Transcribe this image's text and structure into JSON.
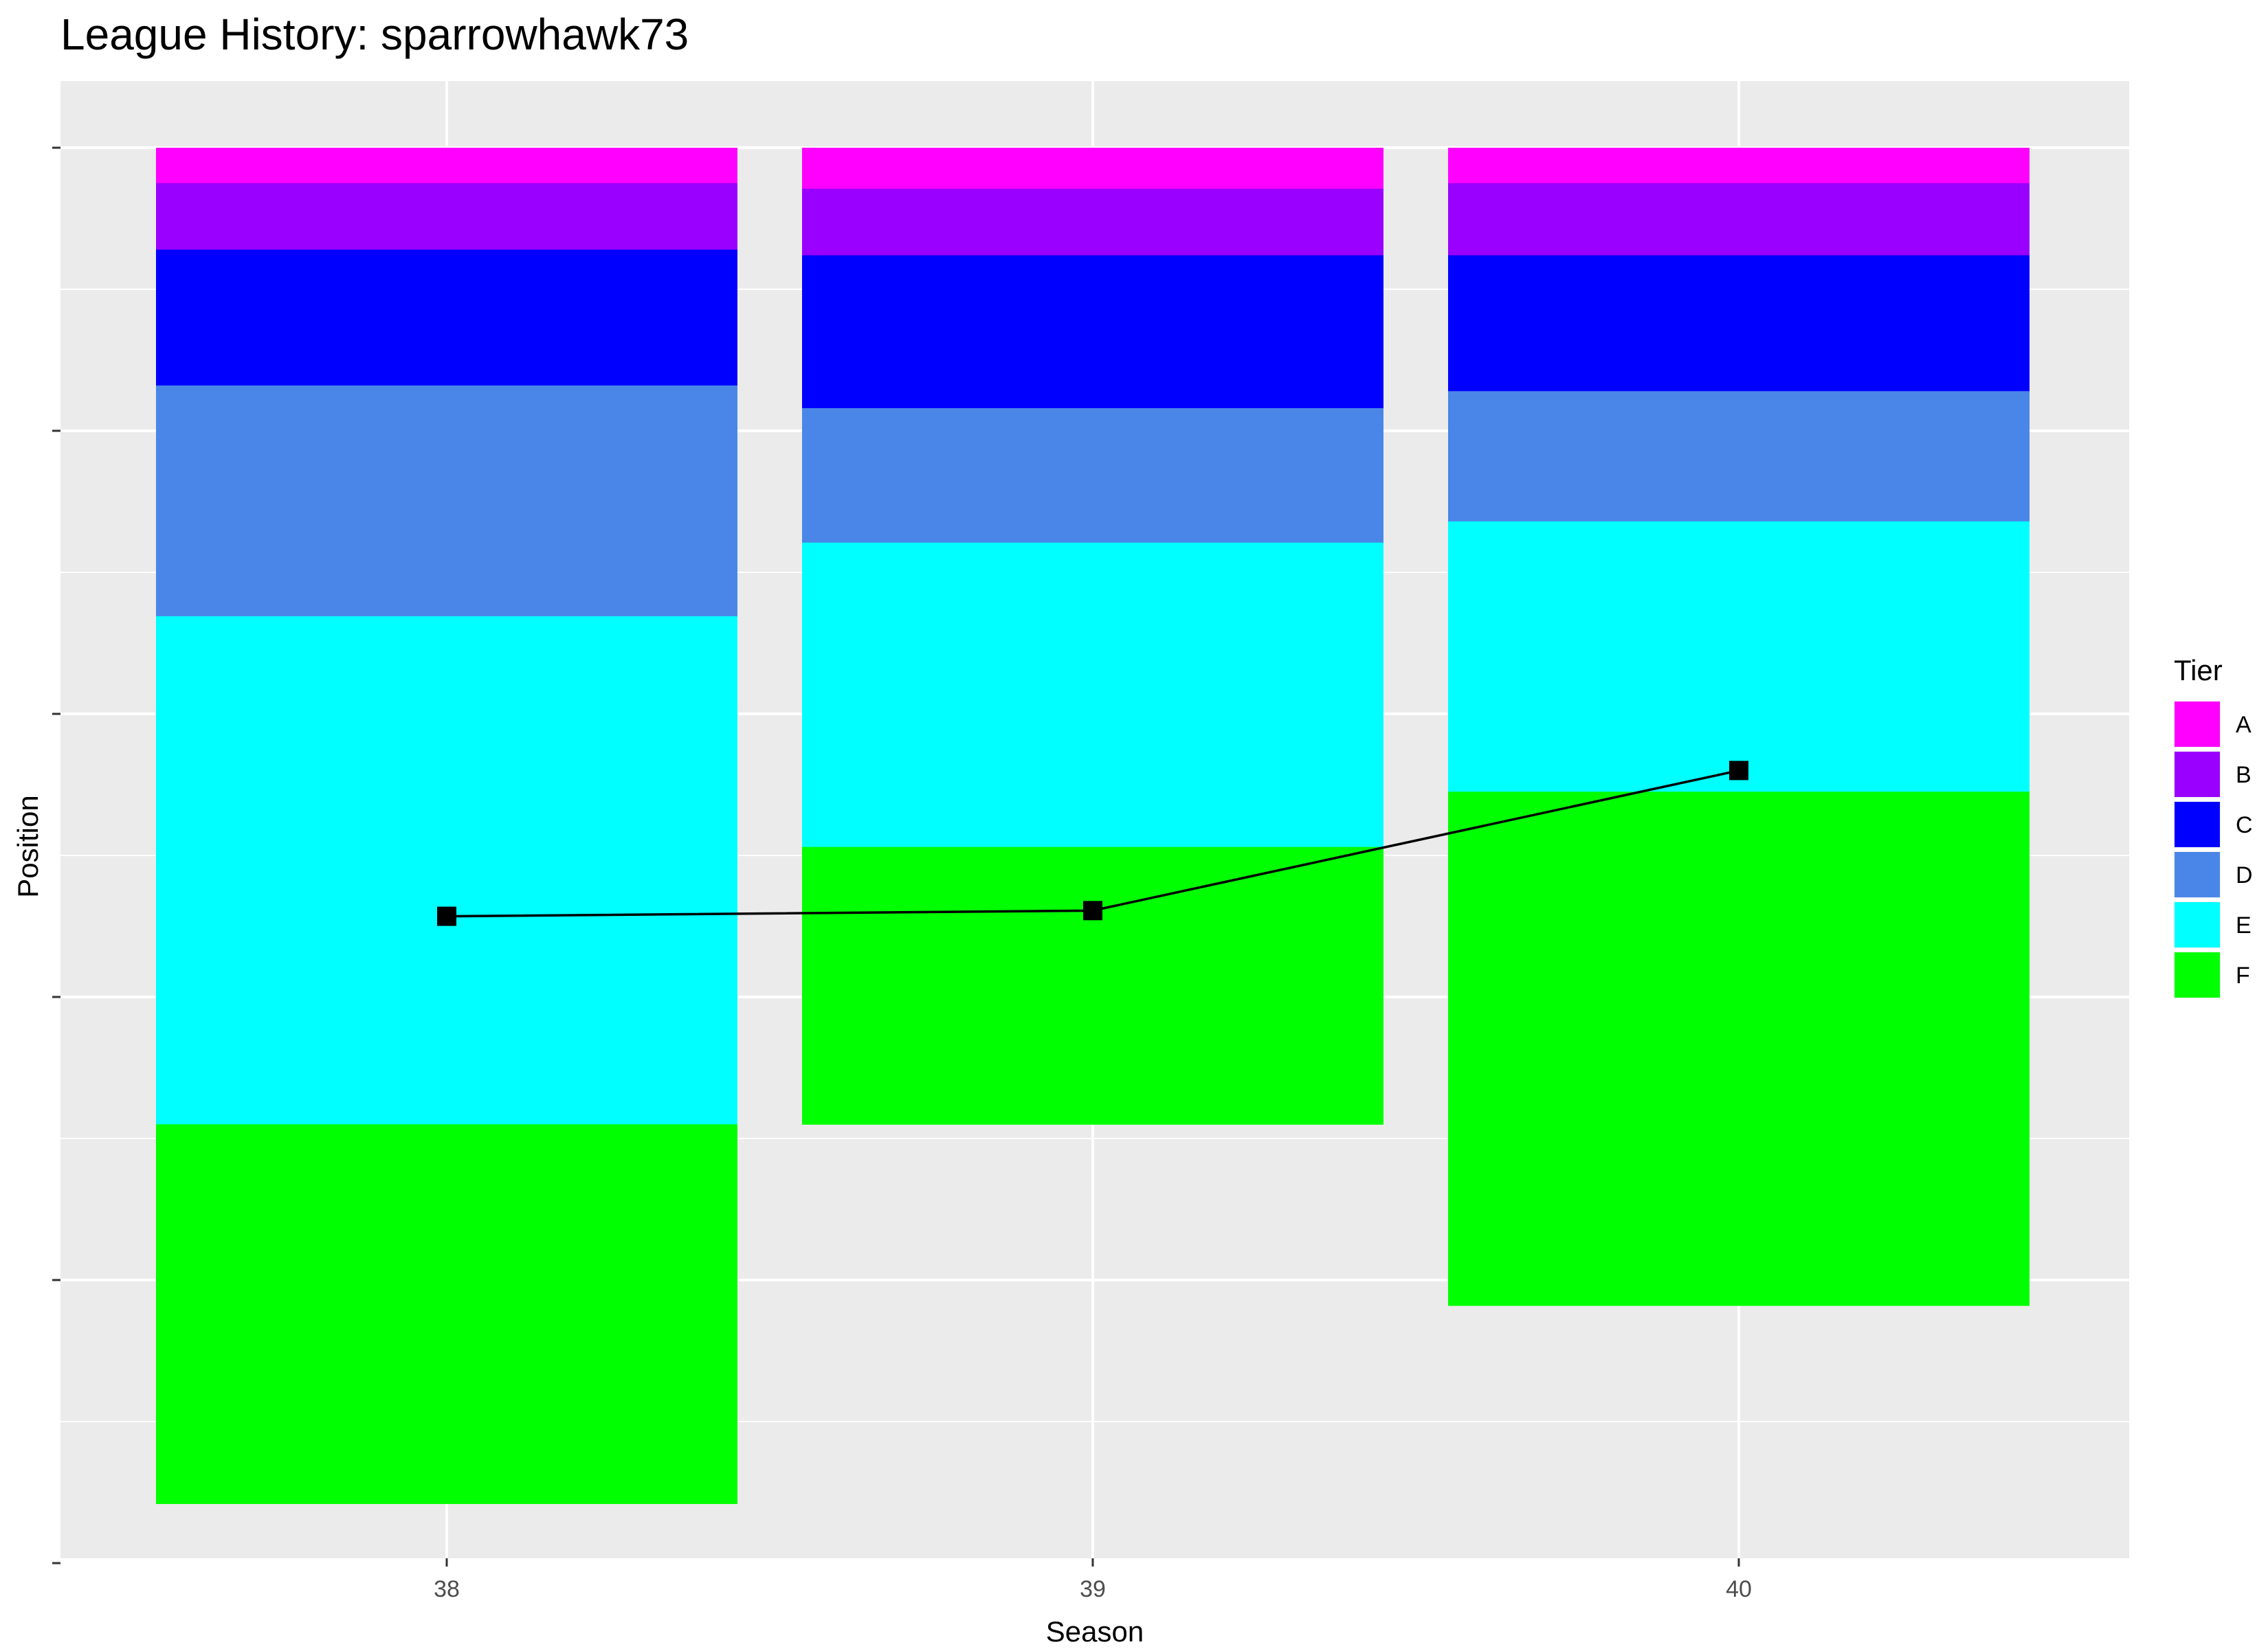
{
  "chart_data": {
    "type": "bar",
    "title": "League History: sparrowhawk73",
    "xlabel": "Season",
    "ylabel": "Position",
    "categories": [
      "38",
      "39",
      "40"
    ],
    "ylim": [
      0,
      1
    ],
    "grid": true,
    "stacked": true,
    "legend": {
      "title": "Tier",
      "position": "right",
      "items": [
        {
          "label": "A",
          "color": "#ff00ff"
        },
        {
          "label": "B",
          "color": "#9900ff"
        },
        {
          "label": "C",
          "color": "#0000ff"
        },
        {
          "label": "D",
          "color": "#4a86e8"
        },
        {
          "label": "E",
          "color": "#00ffff"
        },
        {
          "label": "F",
          "color": "#00ff00"
        }
      ]
    },
    "series": [
      {
        "name": "A",
        "values": [
          0.025,
          0.029,
          0.025
        ]
      },
      {
        "name": "B",
        "values": [
          0.047,
          0.047,
          0.051
        ]
      },
      {
        "name": "C",
        "values": [
          0.096,
          0.108,
          0.096
        ]
      },
      {
        "name": "D",
        "values": [
          0.163,
          0.095,
          0.092
        ]
      },
      {
        "name": "E",
        "values": [
          0.359,
          0.215,
          0.191
        ]
      },
      {
        "name": "F",
        "values": [
          0.268,
          0.196,
          0.363
        ]
      }
    ],
    "line": {
      "marker": "square",
      "color": "#000000",
      "values": [
        0.543,
        0.539,
        0.44
      ]
    }
  }
}
